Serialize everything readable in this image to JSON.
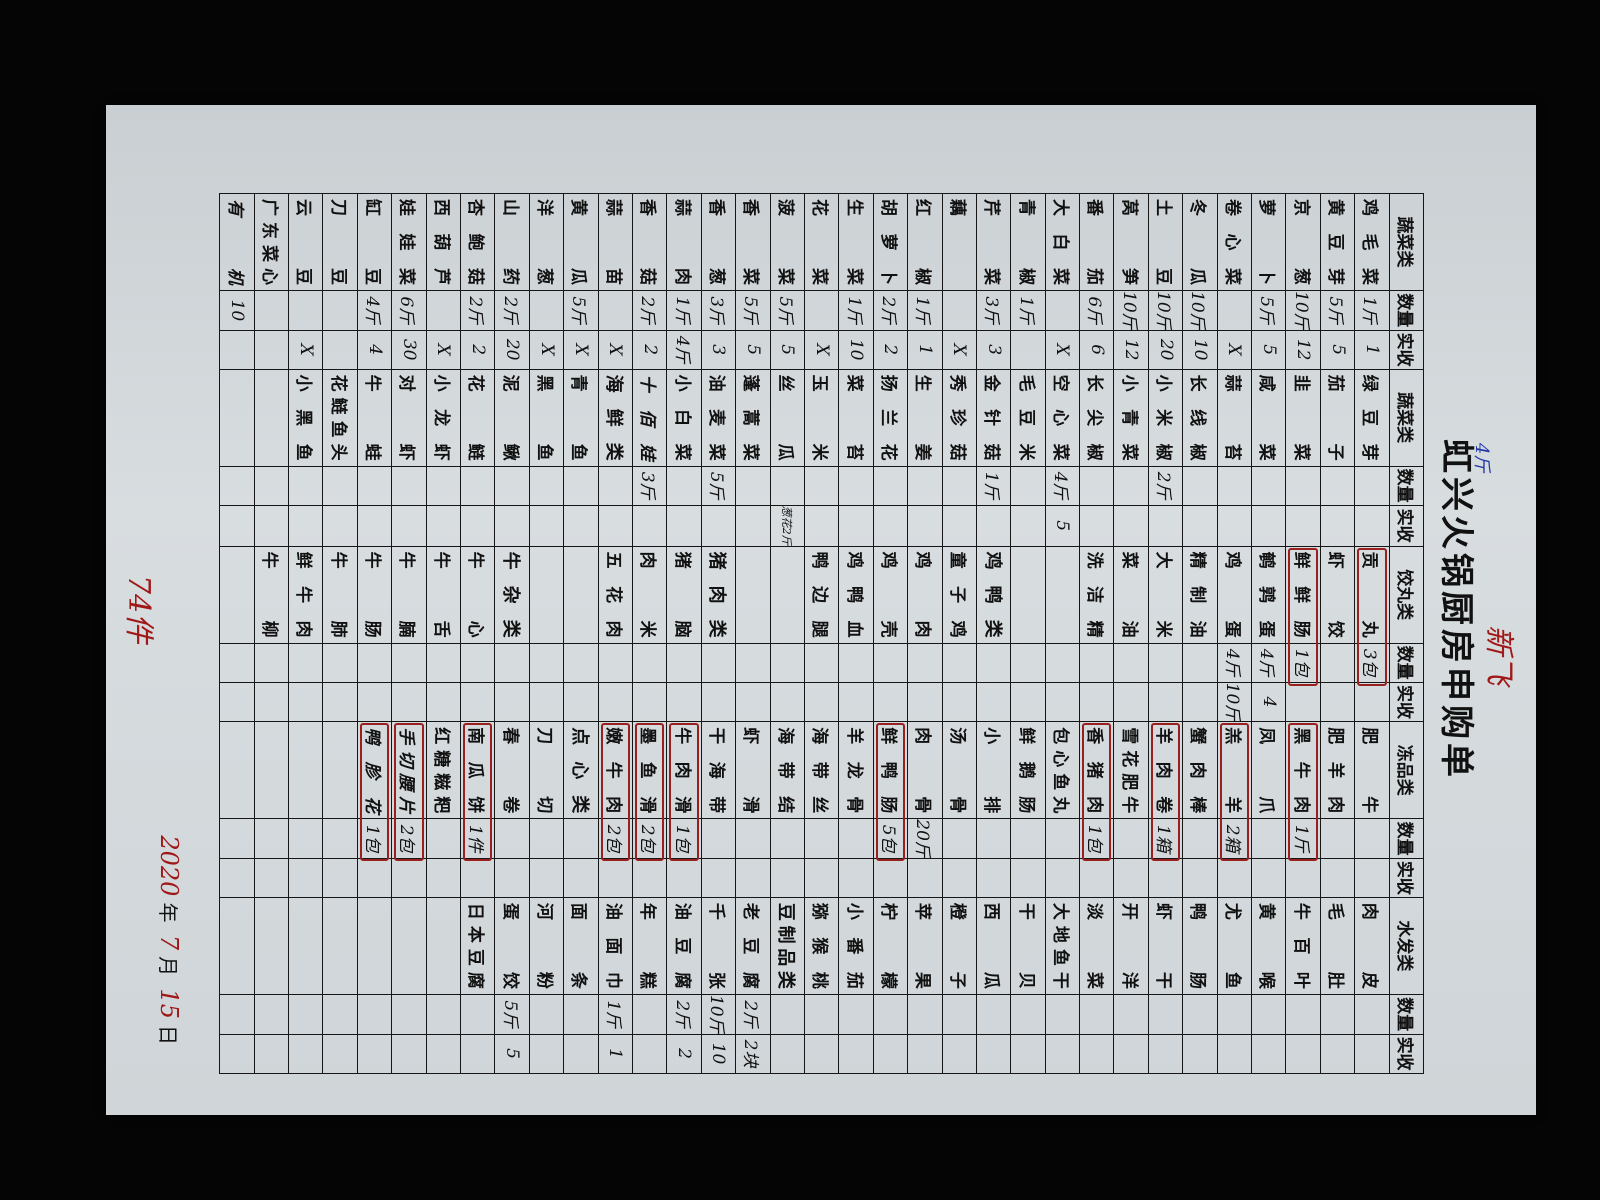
{
  "title": "虹兴火锅厨房申购单",
  "colors": {
    "handwriting_blue": "#2236a8",
    "handwriting_red": "#a01818",
    "paper": "#d4d9dc"
  },
  "headers": [
    "蔬菜类",
    "数量",
    "实收",
    "蔬菜类",
    "数量",
    "实收",
    "饺丸类",
    "数量",
    "实收",
    "冻品类",
    "数量",
    "实收",
    "水发类",
    "数量",
    "实收"
  ],
  "groups": [
    {
      "items": [
        {
          "name": "鸡毛菜",
          "qty": "1斤",
          "recv": "1"
        },
        {
          "name": "黄豆芽",
          "qty": "5斤",
          "recv": "5"
        },
        {
          "name": "京葱",
          "qty": "10斤",
          "recv": "12"
        },
        {
          "name": "萝卜",
          "qty": "5斤",
          "recv": "5"
        },
        {
          "name": "卷心菜",
          "qty": "",
          "recv": "X"
        },
        {
          "name": "冬瓜",
          "qty": "10斤",
          "recv": "10"
        },
        {
          "name": "土豆",
          "qty": "10斤",
          "recv": "20"
        },
        {
          "name": "莴笋",
          "qty": "10斤",
          "recv": "12"
        },
        {
          "name": "番茄",
          "qty": "6斤",
          "recv": "6"
        },
        {
          "name": "大白菜",
          "qty": "",
          "recv": "X"
        },
        {
          "name": "青椒",
          "qty": "1斤",
          "recv": ""
        },
        {
          "name": "芹菜",
          "qty": "3斤",
          "recv": "3"
        },
        {
          "name": "藕",
          "qty": "",
          "recv": "X"
        },
        {
          "name": "红椒",
          "qty": "1斤",
          "recv": "1"
        },
        {
          "name": "胡萝卜",
          "qty": "2斤",
          "recv": "2"
        },
        {
          "name": "生菜",
          "qty": "1斤",
          "recv": "10"
        },
        {
          "name": "花菜",
          "qty": "",
          "recv": "X"
        },
        {
          "name": "菠菜",
          "qty": "5斤",
          "recv": "5"
        },
        {
          "name": "香菜",
          "qty": "5斤",
          "recv": "5"
        },
        {
          "name": "香葱",
          "qty": "3斤",
          "recv": "3"
        },
        {
          "name": "蒜肉",
          "qty": "1斤",
          "recv": "4斤"
        },
        {
          "name": "香菇",
          "qty": "2斤",
          "recv": "2"
        },
        {
          "name": "蒜苗",
          "qty": "",
          "recv": "X"
        },
        {
          "name": "黄瓜",
          "qty": "5斤",
          "recv": "X"
        },
        {
          "name": "洋葱",
          "qty": "",
          "recv": "X"
        },
        {
          "name": "山药",
          "qty": "2斤",
          "recv": "20"
        },
        {
          "name": "杏鲍菇",
          "qty": "2斤",
          "recv": "2"
        },
        {
          "name": "西葫芦",
          "qty": "",
          "recv": "X"
        },
        {
          "name": "娃娃菜",
          "qty": "6斤",
          "recv": "30"
        },
        {
          "name": "缸豆",
          "qty": "4斤",
          "recv": "4"
        },
        {
          "name": "刀豆",
          "qty": "",
          "recv": ""
        },
        {
          "name": "云豆",
          "qty": "",
          "recv": "X"
        },
        {
          "name": "广东菜心",
          "qty": "",
          "recv": ""
        },
        {
          "name": "有机",
          "qty": "10",
          "recv": "",
          "handwritten": true
        }
      ]
    },
    {
      "items": [
        {
          "name": "绿豆芽",
          "qty": "",
          "recv": ""
        },
        {
          "name": "茄子",
          "qty": "",
          "recv": ""
        },
        {
          "name": "韭菜",
          "qty": "",
          "recv": ""
        },
        {
          "name": "咸菜",
          "qty": "",
          "recv": ""
        },
        {
          "name": "蒜苔",
          "qty": "",
          "recv": ""
        },
        {
          "name": "长线椒",
          "qty": "",
          "recv": ""
        },
        {
          "name": "小米椒",
          "qty": "2斤",
          "recv": ""
        },
        {
          "name": "小青菜",
          "qty": "",
          "recv": ""
        },
        {
          "name": "长尖椒",
          "qty": "",
          "recv": ""
        },
        {
          "name": "空心菜",
          "qty": "4斤",
          "recv": "5"
        },
        {
          "name": "毛豆米",
          "qty": "",
          "recv": ""
        },
        {
          "name": "金针菇",
          "qty": "1斤",
          "recv": ""
        },
        {
          "name": "秀珍菇",
          "qty": "",
          "recv": ""
        },
        {
          "name": "生姜",
          "qty": "",
          "recv": ""
        },
        {
          "name": "扬兰花",
          "qty": "",
          "recv": ""
        },
        {
          "name": "菜苔",
          "qty": "",
          "recv": ""
        },
        {
          "name": "玉米",
          "qty": "",
          "recv": ""
        },
        {
          "name": "丝瓜",
          "qty": "",
          "recv": "葱花2斤"
        },
        {
          "name": "蓬蒿菜",
          "qty": "",
          "recv": ""
        },
        {
          "name": "油麦菜",
          "qty": "5斤",
          "recv": ""
        },
        {
          "name": "小白菜",
          "qty": "",
          "recv": ""
        },
        {
          "name": "十佰娃",
          "qty": "3斤",
          "recv": "",
          "handwritten": true
        },
        {
          "name": "海鲜类",
          "qty": "",
          "recv": "",
          "category": true
        },
        {
          "name": "青鱼",
          "qty": "",
          "recv": ""
        },
        {
          "name": "黑鱼",
          "qty": "",
          "recv": ""
        },
        {
          "name": "泥鳅",
          "qty": "",
          "recv": ""
        },
        {
          "name": "花鲢",
          "qty": "",
          "recv": ""
        },
        {
          "name": "小龙虾",
          "qty": "",
          "recv": ""
        },
        {
          "name": "对虾",
          "qty": "",
          "recv": ""
        },
        {
          "name": "牛蛙",
          "qty": "",
          "recv": ""
        },
        {
          "name": "花鲢鱼头",
          "qty": "",
          "recv": ""
        },
        {
          "name": "小黑鱼",
          "qty": "",
          "recv": ""
        },
        {
          "name": "",
          "qty": "",
          "recv": ""
        },
        {
          "name": "",
          "qty": "",
          "recv": ""
        }
      ]
    },
    {
      "items": [
        {
          "name": "贡丸",
          "qty": "3包",
          "recv": "",
          "boxed": true
        },
        {
          "name": "虾饺",
          "qty": "",
          "recv": ""
        },
        {
          "name": "鲜鲜肠",
          "qty": "1包",
          "recv": "",
          "boxed": true
        },
        {
          "name": "鹌鹑蛋",
          "qty": "4斤",
          "recv": "4"
        },
        {
          "name": "鸡蛋",
          "qty": "4斤",
          "recv": "10斤"
        },
        {
          "name": "精制油",
          "qty": "",
          "recv": ""
        },
        {
          "name": "大米",
          "qty": "",
          "recv": ""
        },
        {
          "name": "菜油",
          "qty": "",
          "recv": ""
        },
        {
          "name": "洗洁精",
          "qty": "",
          "recv": ""
        },
        {
          "name": "",
          "qty": "",
          "recv": ""
        },
        {
          "name": "",
          "qty": "",
          "recv": ""
        },
        {
          "name": "鸡鸭类",
          "qty": "",
          "recv": "",
          "category": true
        },
        {
          "name": "童子鸡",
          "qty": "",
          "recv": ""
        },
        {
          "name": "鸡肉",
          "qty": "",
          "recv": ""
        },
        {
          "name": "鸡壳",
          "qty": "",
          "recv": ""
        },
        {
          "name": "鸡鸭血",
          "qty": "",
          "recv": ""
        },
        {
          "name": "鸭边腿",
          "qty": "",
          "recv": ""
        },
        {
          "name": "",
          "qty": "",
          "recv": ""
        },
        {
          "name": "",
          "qty": "",
          "recv": ""
        },
        {
          "name": "猪肉类",
          "qty": "",
          "recv": "",
          "category": true
        },
        {
          "name": "猪脑",
          "qty": "",
          "recv": ""
        },
        {
          "name": "肉米",
          "qty": "",
          "recv": ""
        },
        {
          "name": "五花肉",
          "qty": "",
          "recv": ""
        },
        {
          "name": "",
          "qty": "",
          "recv": ""
        },
        {
          "name": "",
          "qty": "",
          "recv": ""
        },
        {
          "name": "牛杂类",
          "qty": "",
          "recv": "",
          "category": true
        },
        {
          "name": "牛心",
          "qty": "",
          "recv": ""
        },
        {
          "name": "牛舌",
          "qty": "",
          "recv": ""
        },
        {
          "name": "牛腩",
          "qty": "",
          "recv": ""
        },
        {
          "name": "牛肠",
          "qty": "",
          "recv": ""
        },
        {
          "name": "牛肺",
          "qty": "",
          "recv": ""
        },
        {
          "name": "鲜牛肉",
          "qty": "",
          "recv": ""
        },
        {
          "name": "牛柳",
          "qty": "",
          "recv": ""
        },
        {
          "name": "",
          "qty": "",
          "recv": ""
        }
      ]
    },
    {
      "items": [
        {
          "name": "肥牛",
          "qty": "",
          "recv": ""
        },
        {
          "name": "肥羊肉",
          "qty": "",
          "recv": ""
        },
        {
          "name": "黑牛肉",
          "qty": "1斤",
          "recv": "",
          "boxed": true
        },
        {
          "name": "凤爪",
          "qty": "",
          "recv": ""
        },
        {
          "name": "羔羊",
          "qty": "2箱",
          "recv": "",
          "boxed": true
        },
        {
          "name": "蟹肉棒",
          "qty": "",
          "recv": ""
        },
        {
          "name": "羊肉卷",
          "qty": "1箱",
          "recv": "",
          "boxed": true
        },
        {
          "name": "雪花肥牛",
          "qty": "",
          "recv": ""
        },
        {
          "name": "香猪肉",
          "qty": "1包",
          "recv": "",
          "boxed": true
        },
        {
          "name": "包心鱼丸",
          "qty": "",
          "recv": ""
        },
        {
          "name": "鲜鹅肠",
          "qty": "",
          "recv": ""
        },
        {
          "name": "小排",
          "qty": "",
          "recv": ""
        },
        {
          "name": "汤骨",
          "qty": "",
          "recv": ""
        },
        {
          "name": "肉骨",
          "qty": "20斤",
          "recv": ""
        },
        {
          "name": "鲜鸭肠",
          "qty": "5包",
          "recv": "",
          "boxed": true
        },
        {
          "name": "羊龙骨",
          "qty": "",
          "recv": ""
        },
        {
          "name": "海带丝",
          "qty": "",
          "recv": ""
        },
        {
          "name": "海带结",
          "qty": "",
          "recv": ""
        },
        {
          "name": "虾滑",
          "qty": "",
          "recv": ""
        },
        {
          "name": "干海带",
          "qty": "",
          "recv": ""
        },
        {
          "name": "牛肉滑",
          "qty": "1包",
          "recv": "",
          "boxed": true
        },
        {
          "name": "墨鱼滑",
          "qty": "2包",
          "recv": "",
          "boxed": true
        },
        {
          "name": "嫩牛肉",
          "qty": "2包",
          "recv": "",
          "boxed": true
        },
        {
          "name": "点心类",
          "qty": "",
          "recv": "",
          "category": true
        },
        {
          "name": "刀切",
          "qty": "",
          "recv": ""
        },
        {
          "name": "春卷",
          "qty": "",
          "recv": ""
        },
        {
          "name": "南瓜饼",
          "qty": "1件",
          "recv": "",
          "boxed": true
        },
        {
          "name": "红糖糍粑",
          "qty": "",
          "recv": ""
        },
        {
          "name": "手切腰片",
          "qty": "2包",
          "recv": "",
          "handwritten": true,
          "boxed": true
        },
        {
          "name": "鸭胗花",
          "qty": "1包",
          "recv": "",
          "handwritten": true,
          "boxed": true
        },
        {
          "name": "",
          "qty": "",
          "recv": ""
        },
        {
          "name": "",
          "qty": "",
          "recv": ""
        },
        {
          "name": "",
          "qty": "",
          "recv": ""
        },
        {
          "name": "",
          "qty": "",
          "recv": ""
        }
      ]
    },
    {
      "items": [
        {
          "name": "肉皮",
          "qty": "",
          "recv": ""
        },
        {
          "name": "毛肚",
          "qty": "",
          "recv": ""
        },
        {
          "name": "牛百叶",
          "qty": "",
          "recv": ""
        },
        {
          "name": "黄喉",
          "qty": "",
          "recv": ""
        },
        {
          "name": "尤鱼",
          "qty": "",
          "recv": ""
        },
        {
          "name": "鸭肠",
          "qty": "",
          "recv": ""
        },
        {
          "name": "虾干",
          "qty": "",
          "recv": ""
        },
        {
          "name": "开洋",
          "qty": "",
          "recv": ""
        },
        {
          "name": "淡菜",
          "qty": "",
          "recv": ""
        },
        {
          "name": "大地鱼干",
          "qty": "",
          "recv": ""
        },
        {
          "name": "干贝",
          "qty": "",
          "recv": ""
        },
        {
          "name": "西瓜",
          "qty": "",
          "recv": ""
        },
        {
          "name": "橙子",
          "qty": "",
          "recv": ""
        },
        {
          "name": "苹果",
          "qty": "",
          "recv": ""
        },
        {
          "name": "柠檬",
          "qty": "",
          "recv": ""
        },
        {
          "name": "小番茄",
          "qty": "",
          "recv": ""
        },
        {
          "name": "猕猴桃",
          "qty": "",
          "recv": ""
        },
        {
          "name": "豆制品类",
          "qty": "",
          "recv": "",
          "category": true
        },
        {
          "name": "老豆腐",
          "qty": "2斤",
          "recv": "2块"
        },
        {
          "name": "千张",
          "qty": "10斤",
          "recv": "10"
        },
        {
          "name": "油豆腐",
          "qty": "2斤",
          "recv": "2"
        },
        {
          "name": "年糕",
          "qty": "",
          "recv": ""
        },
        {
          "name": "油面巾",
          "qty": "1斤",
          "recv": "1"
        },
        {
          "name": "面条",
          "qty": "",
          "recv": ""
        },
        {
          "name": "河粉",
          "qty": "",
          "recv": ""
        },
        {
          "name": "蛋饺",
          "qty": "5斤",
          "recv": "5"
        },
        {
          "name": "日本豆腐",
          "qty": "",
          "recv": ""
        },
        {
          "name": "",
          "qty": "",
          "recv": ""
        },
        {
          "name": "",
          "qty": "",
          "recv": ""
        },
        {
          "name": "",
          "qty": "",
          "recv": ""
        },
        {
          "name": "",
          "qty": "",
          "recv": ""
        },
        {
          "name": "",
          "qty": "",
          "recv": ""
        },
        {
          "name": "",
          "qty": "",
          "recv": ""
        },
        {
          "name": "",
          "qty": "",
          "recv": ""
        }
      ]
    }
  ],
  "notes": {
    "top_red": "新飞",
    "top_blue": "4斤",
    "bottom_total": "74件"
  },
  "date": {
    "year": "2020",
    "year_label": "年",
    "month": "7",
    "month_label": "月",
    "day": "15",
    "day_label": "日"
  }
}
